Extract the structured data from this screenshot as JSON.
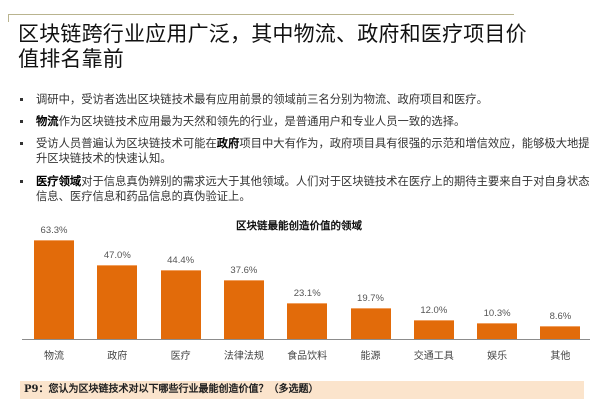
{
  "title": "区块链跨行业应用广泛，其中物流、政府和医疗项目价值排名靠前",
  "bullets": [
    {
      "bold": "",
      "text": "调研中，受访者选出区块链技术最有应用前景的领域前三名分别为物流、政府项目和医疗。"
    },
    {
      "bold": "物流",
      "text": "作为区块链技术应用最为天然和领先的行业，是普通用户和专业人员一致的选择。"
    },
    {
      "pre": "受访人员普遍认为区块链技术可能在",
      "bold": "政府",
      "text": "项目中大有作为，政府项目具有很强的示范和增信效应，能够极大地提升区块链技术的快速认知。"
    },
    {
      "bold": "医疗领域",
      "text": "对于信息真伪辨别的需求远大于其他领域。人们对于区块链技术在医疗上的期待主要来自于对自身状态信息、医疗信息和药品信息的真伪验证上。"
    }
  ],
  "footer": {
    "question": "P9：您认为区块链技术对以下哪些行业最能创造价值？（多选题）"
  },
  "colors": {
    "bar": "#e26b0a",
    "footer_bg": "#fbe4cc",
    "rule": "#b9b48f"
  },
  "chart_data": {
    "type": "bar",
    "title": "区块链最能创造价值的领域",
    "categories": [
      "物流",
      "政府",
      "医疗",
      "法律法规",
      "食品饮料",
      "能源",
      "交通工具",
      "娱乐",
      "其他"
    ],
    "values": [
      63.3,
      47.0,
      44.4,
      37.6,
      23.1,
      19.7,
      12.0,
      10.3,
      8.6
    ],
    "value_labels": [
      "63.3%",
      "47.0%",
      "44.4%",
      "37.6%",
      "23.1%",
      "19.7%",
      "12.0%",
      "10.3%",
      "8.6%"
    ],
    "xlabel": "",
    "ylabel": "",
    "unit": "%",
    "grid": false,
    "legend": "none"
  }
}
